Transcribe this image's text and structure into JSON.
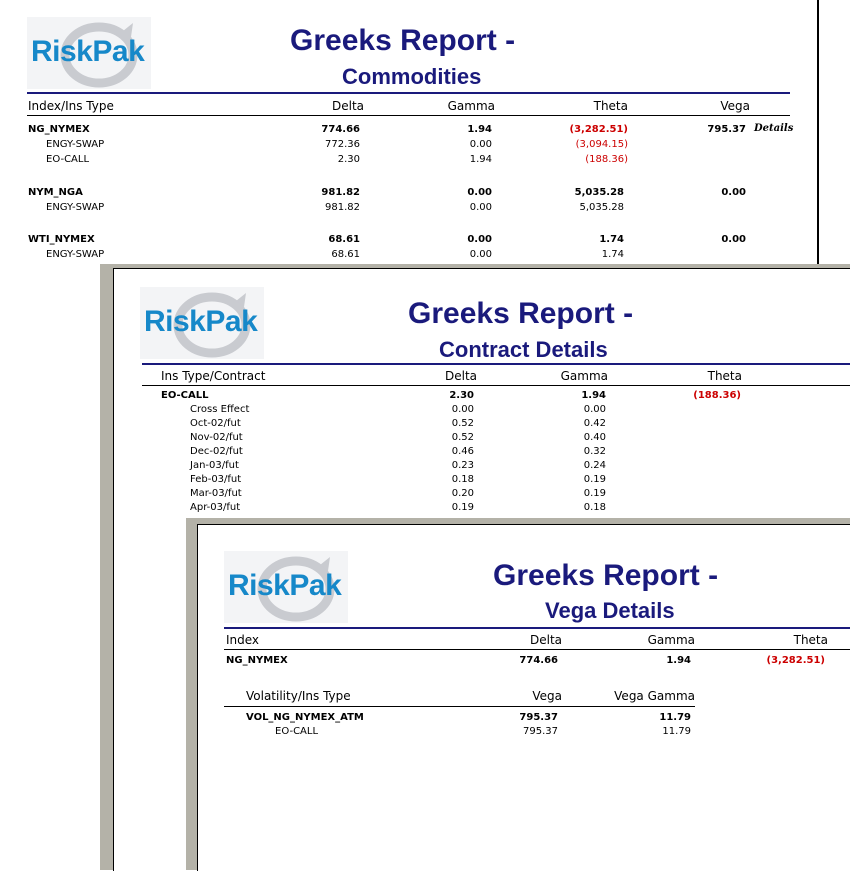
{
  "logo_text": "RiskPak",
  "commodities": {
    "title_line1": "Greeks Report -",
    "title_line2": "Commodities",
    "headers": {
      "index": "Index/Ins Type",
      "delta": "Delta",
      "gamma": "Gamma",
      "theta": "Theta",
      "vega": "Vega"
    },
    "groups": [
      {
        "name": "NG_NYMEX",
        "delta": "774.66",
        "gamma": "1.94",
        "theta": "(3,282.51)",
        "vega": "795.37",
        "link": "Details",
        "rows": [
          {
            "name": "ENGY-SWAP",
            "delta": "772.36",
            "gamma": "0.00",
            "theta": "(3,094.15)"
          },
          {
            "name": "EO-CALL",
            "delta": "2.30",
            "gamma": "1.94",
            "theta": "(188.36)"
          }
        ]
      },
      {
        "name": "NYM_NGA",
        "delta": "981.82",
        "gamma": "0.00",
        "theta": "5,035.28",
        "vega": "0.00",
        "rows": [
          {
            "name": "ENGY-SWAP",
            "delta": "981.82",
            "gamma": "0.00",
            "theta": "5,035.28"
          }
        ]
      },
      {
        "name": "WTI_NYMEX",
        "delta": "68.61",
        "gamma": "0.00",
        "theta": "1.74",
        "vega": "0.00",
        "rows": [
          {
            "name": "ENGY-SWAP",
            "delta": "68.61",
            "gamma": "0.00",
            "theta": "1.74"
          }
        ]
      }
    ]
  },
  "contract": {
    "title_line1": "Greeks Report -",
    "title_line2": "Contract Details",
    "headers": {
      "ins": "Ins Type/Contract",
      "delta": "Delta",
      "gamma": "Gamma",
      "theta": "Theta"
    },
    "group": {
      "name": "EO-CALL",
      "delta": "2.30",
      "gamma": "1.94",
      "theta": "(188.36)"
    },
    "rows": [
      {
        "name": "Cross Effect",
        "delta": "0.00",
        "gamma": "0.00"
      },
      {
        "name": "Oct-02/fut",
        "delta": "0.52",
        "gamma": "0.42"
      },
      {
        "name": "Nov-02/fut",
        "delta": "0.52",
        "gamma": "0.40"
      },
      {
        "name": "Dec-02/fut",
        "delta": "0.46",
        "gamma": "0.32"
      },
      {
        "name": "Jan-03/fut",
        "delta": "0.23",
        "gamma": "0.24"
      },
      {
        "name": "Feb-03/fut",
        "delta": "0.18",
        "gamma": "0.19"
      },
      {
        "name": "Mar-03/fut",
        "delta": "0.20",
        "gamma": "0.19"
      },
      {
        "name": "Apr-03/fut",
        "delta": "0.19",
        "gamma": "0.18"
      }
    ]
  },
  "vega": {
    "title_line1": "Greeks Report -",
    "title_line2": "Vega Details",
    "headers": {
      "index": "Index",
      "delta": "Delta",
      "gamma": "Gamma",
      "theta": "Theta"
    },
    "index_row": {
      "name": "NG_NYMEX",
      "delta": "774.66",
      "gamma": "1.94",
      "theta": "(3,282.51)"
    },
    "sub_headers": {
      "vol": "Volatility/Ins Type",
      "vega": "Vega",
      "vega_gamma": "Vega Gamma"
    },
    "vol_group": {
      "name": "VOL_NG_NYMEX_ATM",
      "vega": "795.37",
      "vega_gamma": "11.79"
    },
    "vol_rows": [
      {
        "name": "EO-CALL",
        "vega": "795.37",
        "vega_gamma": "11.79"
      }
    ]
  },
  "colors": {
    "title": "#1a1a7c",
    "logo": "#1688c9",
    "negative": "#cc0000",
    "frame": "#b4b2a8"
  }
}
